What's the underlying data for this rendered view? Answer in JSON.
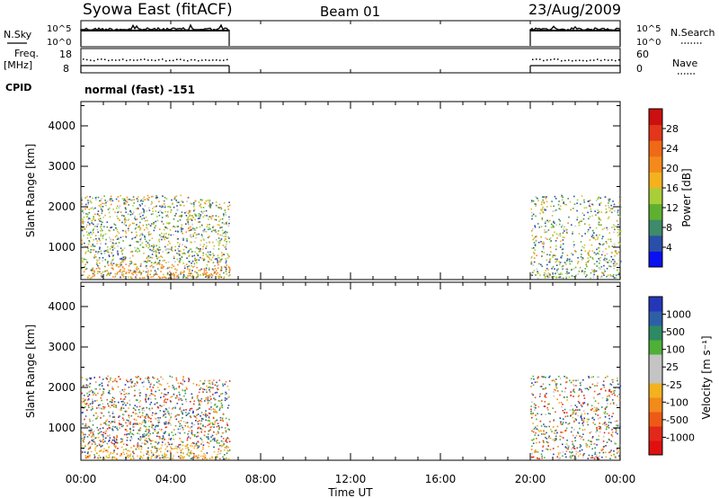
{
  "header": {
    "title": "Syowa East (fitACF)",
    "beam": "Beam 01",
    "date": "23/Aug/2009"
  },
  "strips": {
    "nsky": {
      "label": "N.Sky",
      "ticks": [
        "10^5",
        "10^0"
      ]
    },
    "nsearch": {
      "label": "N.Search",
      "ticks": [
        "10^5",
        "10^0"
      ]
    },
    "freq": {
      "label_line1": "Freq.",
      "label_line2": "[MHz]",
      "ticks": [
        "18",
        "8"
      ]
    },
    "nave": {
      "label": "Nave",
      "ticks": [
        "60",
        "0"
      ]
    },
    "cpid": {
      "label": "CPID",
      "value": "normal (fast) -151"
    }
  },
  "x_axis": {
    "label": "Time UT",
    "ticks": [
      "00:00",
      "04:00",
      "08:00",
      "12:00",
      "16:00",
      "20:00",
      "00:00"
    ],
    "tick_hours": [
      0,
      4,
      8,
      12,
      16,
      20,
      24
    ],
    "range_hours": [
      0,
      24
    ]
  },
  "chart_data": [
    {
      "type": "heatmap",
      "panel": "power",
      "ylabel": "Slant Range [km]",
      "yticks": [
        1000,
        2000,
        3000,
        4000
      ],
      "ylim": [
        200,
        4600
      ],
      "xlim_hours": [
        0,
        24
      ],
      "data_intervals_hours": [
        [
          0,
          6.6
        ],
        [
          20,
          24
        ]
      ],
      "colorbar": {
        "label": "Power [dB]",
        "tick_labels": [
          "4",
          "8",
          "12",
          "16",
          "20",
          "24",
          "28"
        ],
        "colors": [
          "#0a10f0",
          "#2a4fa8",
          "#3e8a6a",
          "#5fb030",
          "#a8cf38",
          "#f3b21e",
          "#f58a1c",
          "#ee6a16",
          "#e2361a",
          "#cc0f0f"
        ]
      }
    },
    {
      "type": "heatmap",
      "panel": "velocity",
      "ylabel": "Slant Range [km]",
      "yticks": [
        1000,
        2000,
        3000,
        4000
      ],
      "ylim": [
        200,
        4600
      ],
      "xlim_hours": [
        0,
        24
      ],
      "data_intervals_hours": [
        [
          0,
          6.6
        ],
        [
          20,
          24
        ]
      ],
      "colorbar": {
        "label": "Velocity [m s⁻¹]",
        "tick_labels": [
          "1000",
          "500",
          "100",
          "25",
          "-25",
          "-100",
          "-500",
          "-1000"
        ],
        "colors": [
          "#2537b8",
          "#2d5fa8",
          "#2e8a62",
          "#4fb038",
          "#c4c4c4",
          "#c4c4c4",
          "#f3b21e",
          "#f28a1c",
          "#ee5a16",
          "#e2281a",
          "#e01010"
        ]
      }
    }
  ]
}
